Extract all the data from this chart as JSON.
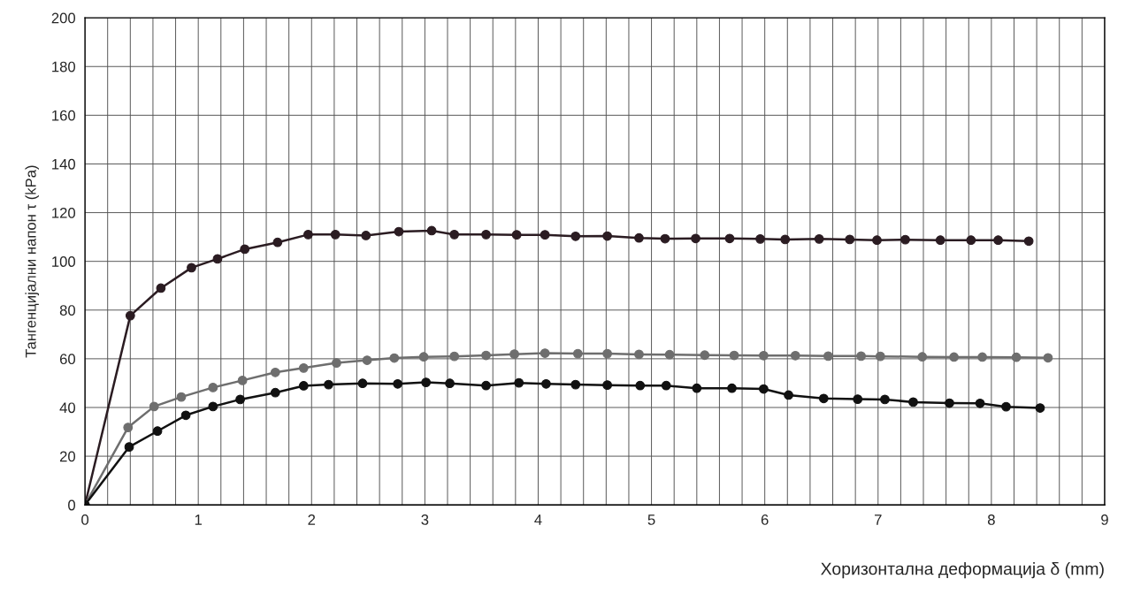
{
  "chart_data": {
    "type": "line",
    "xlabel": "Хоризонтална деформација δ (mm)",
    "ylabel": "Тангенцијални напон τ (kPa)",
    "xlim": [
      0,
      9
    ],
    "ylim": [
      0,
      200
    ],
    "xticks": [
      0,
      {
        "value": 0.2,
        "label": null
      },
      {
        "value": 0.4,
        "label": null
      },
      {
        "value": 0.6,
        "label": null
      },
      {
        "value": 0.8,
        "label": null
      },
      1,
      {
        "value": 1.2,
        "label": null
      },
      {
        "value": 1.4,
        "label": null
      },
      {
        "value": 1.6,
        "label": null
      },
      {
        "value": 1.8,
        "label": null
      },
      2,
      {
        "value": 2.2,
        "label": null
      },
      {
        "value": 2.4,
        "label": null
      },
      {
        "value": 2.6,
        "label": null
      },
      {
        "value": 2.8,
        "label": null
      },
      3,
      {
        "value": 3.2,
        "label": null
      },
      {
        "value": 3.4,
        "label": null
      },
      {
        "value": 3.6,
        "label": null
      },
      {
        "value": 3.8,
        "label": null
      },
      4,
      {
        "value": 4.2,
        "label": null
      },
      {
        "value": 4.4,
        "label": null
      },
      {
        "value": 4.6,
        "label": null
      },
      {
        "value": 4.8,
        "label": null
      },
      5,
      {
        "value": 5.2,
        "label": null
      },
      {
        "value": 5.4,
        "label": null
      },
      {
        "value": 5.6,
        "label": null
      },
      {
        "value": 5.8,
        "label": null
      },
      6,
      {
        "value": 6.2,
        "label": null
      },
      {
        "value": 6.4,
        "label": null
      },
      {
        "value": 6.6,
        "label": null
      },
      {
        "value": 6.8,
        "label": null
      },
      7,
      {
        "value": 7.2,
        "label": null
      },
      {
        "value": 7.4,
        "label": null
      },
      {
        "value": 7.6,
        "label": null
      },
      {
        "value": 7.8,
        "label": null
      },
      8,
      {
        "value": 8.2,
        "label": null
      },
      {
        "value": 8.4,
        "label": null
      },
      {
        "value": 8.6,
        "label": null
      },
      {
        "value": 8.8,
        "label": null
      },
      9
    ],
    "yticks": [
      0,
      20,
      40,
      60,
      80,
      100,
      120,
      140,
      160,
      180,
      200
    ],
    "grid": true,
    "marker": "circle",
    "line_style": "solid",
    "series": [
      {
        "color": "#2b1c22",
        "x": [
          0,
          0.4,
          0.67,
          0.94,
          1.17,
          1.41,
          1.7,
          1.97,
          2.21,
          2.48,
          2.77,
          3.06,
          3.26,
          3.54,
          3.81,
          4.06,
          4.33,
          4.61,
          4.89,
          5.12,
          5.39,
          5.69,
          5.96,
          6.18,
          6.48,
          6.75,
          6.99,
          7.24,
          7.55,
          7.82,
          8.06,
          8.33
        ],
        "values": [
          0,
          77.7,
          89,
          97.4,
          101,
          105,
          107.8,
          111,
          111,
          110.6,
          112.2,
          112.6,
          111,
          111,
          110.9,
          110.9,
          110.3,
          110.4,
          109.6,
          109.3,
          109.4,
          109.4,
          109.2,
          109,
          109.2,
          109,
          108.7,
          108.9,
          108.7,
          108.7,
          108.7,
          108.3
        ]
      },
      {
        "color": "#6e6e6e",
        "x": [
          0,
          0.38,
          0.61,
          0.85,
          1.13,
          1.39,
          1.68,
          1.93,
          2.22,
          2.49,
          2.73,
          2.99,
          3.26,
          3.54,
          3.79,
          4.06,
          4.35,
          4.61,
          4.89,
          5.16,
          5.47,
          5.73,
          5.99,
          6.27,
          6.56,
          6.85,
          7.02,
          7.39,
          7.67,
          7.92,
          8.22,
          8.5
        ],
        "values": [
          0,
          31.8,
          40.4,
          44.3,
          48.2,
          51.1,
          54.4,
          56.2,
          58.3,
          59.4,
          60.3,
          60.8,
          61,
          61.4,
          61.9,
          62.3,
          62.1,
          62.1,
          61.8,
          61.7,
          61.5,
          61.4,
          61.3,
          61.3,
          61.1,
          61.1,
          61.0,
          60.8,
          60.7,
          60.7,
          60.6,
          60.4
        ]
      },
      {
        "color": "#111111",
        "x": [
          0,
          0.39,
          0.64,
          0.89,
          1.13,
          1.37,
          1.68,
          1.93,
          2.15,
          2.45,
          2.76,
          3.01,
          3.22,
          3.54,
          3.83,
          4.07,
          4.33,
          4.61,
          4.9,
          5.13,
          5.4,
          5.71,
          5.99,
          6.21,
          6.52,
          6.82,
          7.06,
          7.31,
          7.63,
          7.9,
          8.13,
          8.43
        ],
        "values": [
          0,
          23.8,
          30.3,
          36.8,
          40.4,
          43.3,
          46.1,
          48.9,
          49.4,
          49.9,
          49.7,
          50.3,
          49.9,
          49,
          50.1,
          49.7,
          49.4,
          49.2,
          49.0,
          49.0,
          47.9,
          47.9,
          47.6,
          45.1,
          43.7,
          43.4,
          43.3,
          42.2,
          41.8,
          41.7,
          40.3,
          39.8
        ]
      }
    ]
  }
}
